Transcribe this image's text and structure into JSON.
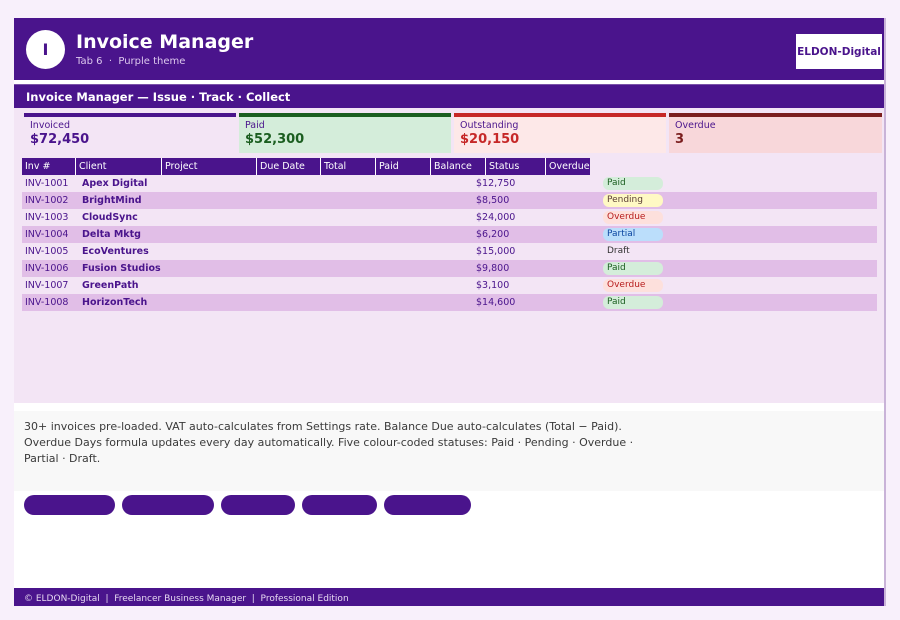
{
  "header": {
    "logo_letter": "I",
    "title": "Invoice Manager",
    "subtitle": "Tab 6  ·  Purple theme",
    "brand": "ELDON-Digital"
  },
  "band_title": "Invoice Manager — Issue · Track · Collect",
  "kpis": [
    {
      "label": "Invoiced",
      "value": "$72,450",
      "bar_color": "#4a148c",
      "bg": "#f3e5f5",
      "value_color": "#4a148c"
    },
    {
      "label": "Paid",
      "value": "$52,300",
      "bar_color": "#1b5e20",
      "bg": "#d4edda",
      "value_color": "#1b5e20"
    },
    {
      "label": "Outstanding",
      "value": "$20,150",
      "bar_color": "#c62828",
      "bg": "#fde8e8",
      "value_color": "#c62828"
    },
    {
      "label": "Overdue",
      "value": "3",
      "bar_color": "#7b1e1e",
      "bg": "#f8d7da",
      "value_color": "#7b1e1e"
    }
  ],
  "table": {
    "columns": [
      "Inv #",
      "Client",
      "Project",
      "Due Date",
      "Total",
      "Paid",
      "Balance",
      "Status",
      "Overdue"
    ],
    "rows": [
      {
        "inv": "INV-1001",
        "client": "Apex Digital",
        "amount": "$12,750",
        "status": "Paid"
      },
      {
        "inv": "INV-1002",
        "client": "BrightMind",
        "amount": "$8,500",
        "status": "Pending"
      },
      {
        "inv": "INV-1003",
        "client": "CloudSync",
        "amount": "$24,000",
        "status": "Overdue"
      },
      {
        "inv": "INV-1004",
        "client": "Delta Mktg",
        "amount": "$6,200",
        "status": "Partial"
      },
      {
        "inv": "INV-1005",
        "client": "EcoVentures",
        "amount": "$15,000",
        "status": "Draft"
      },
      {
        "inv": "INV-1006",
        "client": "Fusion Studios",
        "amount": "$9,800",
        "status": "Paid"
      },
      {
        "inv": "INV-1007",
        "client": "GreenPath",
        "amount": "$3,100",
        "status": "Overdue"
      },
      {
        "inv": "INV-1008",
        "client": "HorizonTech",
        "amount": "$14,600",
        "status": "Paid"
      }
    ]
  },
  "status_colors": {
    "Paid": {
      "bg": "#d4edda",
      "fg": "#1b5e20"
    },
    "Pending": {
      "bg": "#fff9c4",
      "fg": "#5d4037"
    },
    "Overdue": {
      "bg": "#fde0dc",
      "fg": "#b71c1c"
    },
    "Partial": {
      "bg": "#bbdefb",
      "fg": "#0d47a1"
    },
    "Draft": {
      "bg": "transparent",
      "fg": "#333333"
    }
  },
  "notes": "30+ invoices pre-loaded. VAT auto-calculates from Settings rate. Balance Due auto-calculates (Total − Paid). Overdue Days formula updates every day automatically. Five colour-coded statuses: Paid · Pending · Overdue · Partial · Draft.",
  "footer": "© ELDON-Digital  |  Freelancer Business Manager  |  Professional Edition"
}
